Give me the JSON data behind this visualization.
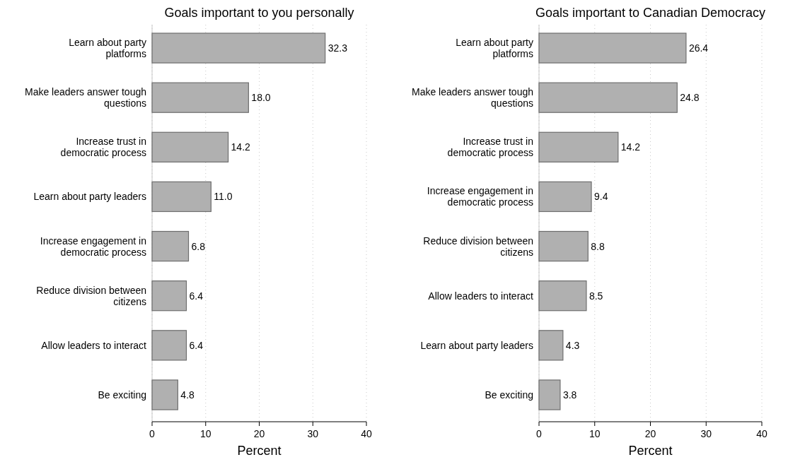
{
  "chart_data": [
    {
      "type": "bar",
      "orientation": "horizontal",
      "title": "Goals important to you personally",
      "xlabel": "Percent",
      "categories": [
        "Learn about party\nplatforms",
        "Make leaders answer tough\nquestions",
        "Increase trust in\ndemocratic process",
        "Learn about party leaders",
        "Increase engagement in\ndemocratic process",
        "Reduce division between\ncitizens",
        "Allow leaders to interact",
        "Be exciting"
      ],
      "values": [
        32.3,
        18.0,
        14.2,
        11.0,
        6.8,
        6.4,
        6.4,
        4.8
      ],
      "value_labels": [
        "32.3",
        "18.0",
        "14.2",
        "11.0",
        "6.8",
        "6.4",
        "6.4",
        "4.8"
      ],
      "color": "#b0b0b0",
      "xlim": [
        0,
        40
      ],
      "xticks": [
        0,
        10,
        20,
        30,
        40
      ],
      "grid": "x"
    },
    {
      "type": "bar",
      "orientation": "horizontal",
      "title": "Goals important to Canadian Democracy",
      "xlabel": "Percent",
      "categories": [
        "Learn about party\nplatforms",
        "Make leaders answer tough\nquestions",
        "Increase trust in\ndemocratic process",
        "Increase engagement in\ndemocratic process",
        "Reduce division between\ncitizens",
        "Allow leaders to interact",
        "Learn about party leaders",
        "Be exciting"
      ],
      "values": [
        26.4,
        24.8,
        14.2,
        9.4,
        8.8,
        8.5,
        4.3,
        3.8
      ],
      "value_labels": [
        "26.4",
        "24.8",
        "14.2",
        "9.4",
        "8.8",
        "8.5",
        "4.3",
        "3.8"
      ],
      "color": "#b0b0b0",
      "xlim": [
        0,
        40
      ],
      "xticks": [
        0,
        10,
        20,
        30,
        40
      ],
      "grid": "x"
    }
  ]
}
